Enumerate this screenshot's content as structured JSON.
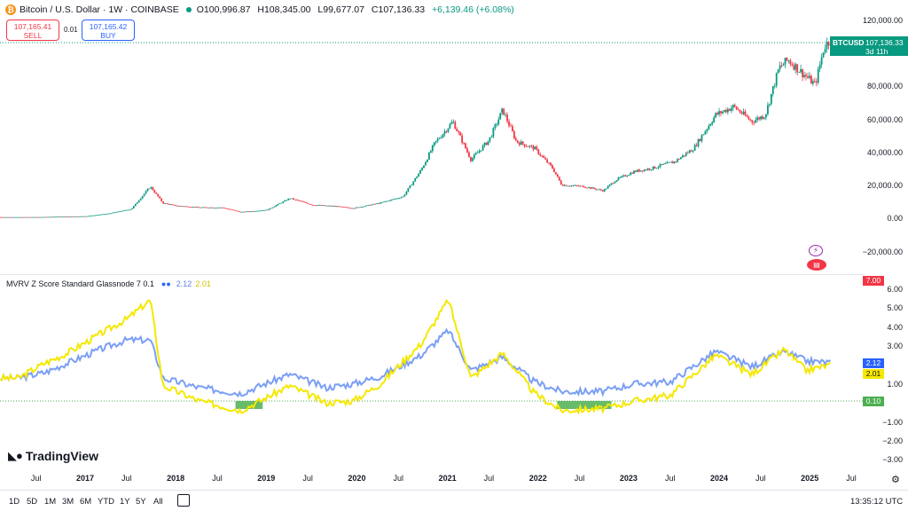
{
  "header": {
    "symbol_title": "Bitcoin / U.S. Dollar · 1W · COINBASE",
    "open": "O100,996.87",
    "high": "H108,345.00",
    "low": "L99,677.07",
    "close": "C107,136.33",
    "change": "+6,139.46 (+6.08%)",
    "sell_price": "107,165.41",
    "sell_label": "SELL",
    "spread": "0.01",
    "buy_price": "107,165.42",
    "buy_label": "BUY"
  },
  "price_pane": {
    "ticker": "BTCUSD",
    "last_price": "107,136.33",
    "countdown": "3d 11h",
    "axis": [
      "120,000.00",
      "80,000.00",
      "60,000.00",
      "40,000.00",
      "20,000.00",
      "0.00",
      "−20,000.00"
    ]
  },
  "indicator_pane": {
    "name": "MVRV Z Score Standard Glassnode 7 0.1",
    "value_1": "2.12",
    "value_2": "2.01",
    "upper_tag": "7.00",
    "blue_tag": "2.12",
    "yellow_tag": "2.01",
    "green_tag": "0.10",
    "axis": [
      "6.00",
      "5.00",
      "4.00",
      "3.00",
      "1.00",
      "−1.00",
      "−2.00",
      "−3.00"
    ]
  },
  "time_axis": [
    {
      "label": "Jul",
      "year": false
    },
    {
      "label": "2017",
      "year": true
    },
    {
      "label": "Jul",
      "year": false
    },
    {
      "label": "2018",
      "year": true
    },
    {
      "label": "Jul",
      "year": false
    },
    {
      "label": "2019",
      "year": true
    },
    {
      "label": "Jul",
      "year": false
    },
    {
      "label": "2020",
      "year": true
    },
    {
      "label": "Jul",
      "year": false
    },
    {
      "label": "2021",
      "year": true
    },
    {
      "label": "Jul",
      "year": false
    },
    {
      "label": "2022",
      "year": true
    },
    {
      "label": "Jul",
      "year": false
    },
    {
      "label": "2023",
      "year": true
    },
    {
      "label": "Jul",
      "year": false
    },
    {
      "label": "2024",
      "year": true
    },
    {
      "label": "Jul",
      "year": false
    },
    {
      "label": "2025",
      "year": true
    },
    {
      "label": "Jul",
      "year": false
    }
  ],
  "ranges": [
    "1D",
    "5D",
    "1M",
    "3M",
    "6M",
    "YTD",
    "1Y",
    "5Y",
    "All"
  ],
  "clock": "13:35:12 UTC",
  "brand": "TradingView",
  "colors": {
    "up": "#089981",
    "down": "#f23645",
    "mvrv_blue": "#7b9ff5",
    "mvrv_yellow": "#f5e800",
    "mvrv_green": "#4caf50"
  },
  "chart_data": {
    "type": "line",
    "title": "Bitcoin / U.S. Dollar · 1W · COINBASE",
    "ylim": [
      -30000,
      125000
    ],
    "series": [
      {
        "name": "BTCUSD weekly close",
        "x": [
          2016.5,
          2016.75,
          2017.0,
          2017.25,
          2017.5,
          2017.75,
          2017.96,
          2018.1,
          2018.25,
          2018.5,
          2018.75,
          2018.96,
          2019.25,
          2019.5,
          2019.75,
          2020.0,
          2020.2,
          2020.5,
          2020.75,
          2020.95,
          2021.1,
          2021.3,
          2021.5,
          2021.7,
          2021.85,
          2022.0,
          2022.2,
          2022.4,
          2022.5,
          2022.75,
          2022.96,
          2023.1,
          2023.3,
          2023.5,
          2023.75,
          2023.96,
          2024.2,
          2024.4,
          2024.6,
          2024.75,
          2024.9,
          2025.0,
          2025.2,
          2025.3,
          2025.4,
          2025.47
        ],
        "values": [
          650,
          700,
          1000,
          1200,
          2800,
          5500,
          19000,
          9000,
          7500,
          6500,
          6400,
          3700,
          5000,
          12000,
          8000,
          7200,
          6000,
          9200,
          13000,
          29000,
          45000,
          58000,
          35000,
          47000,
          65000,
          46000,
          42000,
          30000,
          20000,
          19000,
          16500,
          23000,
          28000,
          30000,
          34000,
          42000,
          62000,
          67000,
          58000,
          62000,
          90000,
          95000,
          85000,
          80000,
          103000,
          107136
        ]
      },
      {
        "name": "MVRV Z Score (blue)",
        "x": [
          2016.5,
          2016.8,
          2017.0,
          2017.4,
          2017.7,
          2017.96,
          2018.1,
          2018.5,
          2018.96,
          2019.5,
          2019.9,
          2020.2,
          2020.5,
          2020.95,
          2021.25,
          2021.5,
          2021.85,
          2022.2,
          2022.5,
          2022.96,
          2023.3,
          2023.7,
          2024.2,
          2024.6,
          2024.96,
          2025.2,
          2025.47
        ],
        "values": [
          1.3,
          1.6,
          2.0,
          2.8,
          3.3,
          3.3,
          1.3,
          0.8,
          0.5,
          1.5,
          0.8,
          1.0,
          1.4,
          2.5,
          3.8,
          1.7,
          2.4,
          1.1,
          0.6,
          0.6,
          1.0,
          1.1,
          2.7,
          1.9,
          2.7,
          2.2,
          2.12
        ]
      },
      {
        "name": "MVRV Z Score (yellow)",
        "x": [
          2016.5,
          2016.8,
          2017.0,
          2017.4,
          2017.7,
          2017.96,
          2018.1,
          2018.5,
          2018.96,
          2019.5,
          2019.9,
          2020.2,
          2020.5,
          2020.95,
          2021.25,
          2021.5,
          2021.85,
          2022.2,
          2022.5,
          2022.96,
          2023.3,
          2023.7,
          2024.2,
          2024.6,
          2024.96,
          2025.2,
          2025.47
        ],
        "values": [
          1.3,
          2.1,
          2.5,
          3.6,
          4.4,
          5.4,
          0.9,
          0.1,
          -0.4,
          0.9,
          0.0,
          0.1,
          1.0,
          3.1,
          5.4,
          1.3,
          2.6,
          0.5,
          -0.4,
          -0.3,
          0.1,
          0.4,
          2.5,
          1.5,
          2.8,
          1.7,
          2.01
        ]
      }
    ]
  }
}
